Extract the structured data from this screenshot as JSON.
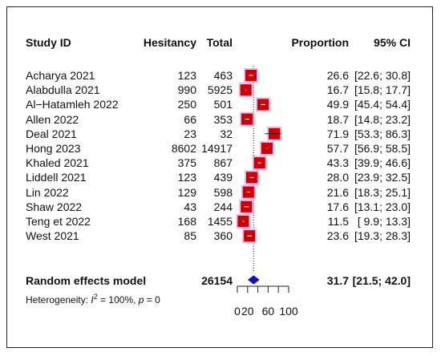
{
  "headers": {
    "study": "Study ID",
    "hesitancy": "Hesitancy",
    "total": "Total",
    "proportion": "Proportion",
    "ci": "95% CI"
  },
  "summary": {
    "label": "Random effects model",
    "total": "26154",
    "proportion": "31.7",
    "ci": "[21.5; 42.0]",
    "heterogeneity_prefix": "Heterogeneity: ",
    "heterogeneity_i": "I",
    "heterogeneity_sup": "2",
    "heterogeneity_rest": " = 100%, ",
    "heterogeneity_p": "p",
    "heterogeneity_pval": " = 0"
  },
  "colors": {
    "box": "#cc0000",
    "box_halo": "#e8a8e8",
    "diamond": "#1010cc",
    "line": "#222222"
  },
  "chart_data": {
    "type": "forest",
    "x_ticks": [
      "0",
      "20",
      "60",
      "100"
    ],
    "x_tick_values": [
      0,
      20,
      60,
      100
    ],
    "xlim": [
      0,
      100
    ],
    "reference_line": 31.7,
    "studies": [
      {
        "study": "Acharya 2021",
        "hesitancy": "123",
        "total": "463",
        "proportion": 26.6,
        "prop_label": "26.6",
        "lower": 22.6,
        "upper": 30.8,
        "ci_label": "[22.6; 30.8]"
      },
      {
        "study": "Alabdulla 2021",
        "hesitancy": "990",
        "total": "5925",
        "proportion": 16.7,
        "prop_label": "16.7",
        "lower": 15.8,
        "upper": 17.7,
        "ci_label": "[15.8; 17.7]"
      },
      {
        "study": "Al−Hatamleh 2022",
        "hesitancy": "250",
        "total": "501",
        "proportion": 49.9,
        "prop_label": "49.9",
        "lower": 45.4,
        "upper": 54.4,
        "ci_label": "[45.4; 54.4]"
      },
      {
        "study": "Allen 2022",
        "hesitancy": "66",
        "total": "353",
        "proportion": 18.7,
        "prop_label": "18.7",
        "lower": 14.8,
        "upper": 23.2,
        "ci_label": "[14.8; 23.2]"
      },
      {
        "study": "Deal 2021",
        "hesitancy": "23",
        "total": "32",
        "proportion": 71.9,
        "prop_label": "71.9",
        "lower": 53.3,
        "upper": 86.3,
        "ci_label": "[53.3; 86.3]"
      },
      {
        "study": "Hong 2023",
        "hesitancy": "8602",
        "total": "14917",
        "proportion": 57.7,
        "prop_label": "57.7",
        "lower": 56.9,
        "upper": 58.5,
        "ci_label": "[56.9; 58.5]"
      },
      {
        "study": "Khaled 2021",
        "hesitancy": "375",
        "total": "867",
        "proportion": 43.3,
        "prop_label": "43.3",
        "lower": 39.9,
        "upper": 46.6,
        "ci_label": "[39.9; 46.6]"
      },
      {
        "study": "Liddell 2021",
        "hesitancy": "123",
        "total": "439",
        "proportion": 28.0,
        "prop_label": "28.0",
        "lower": 23.9,
        "upper": 32.5,
        "ci_label": "[23.9; 32.5]"
      },
      {
        "study": "Lin 2022",
        "hesitancy": "129",
        "total": "598",
        "proportion": 21.6,
        "prop_label": "21.6",
        "lower": 18.3,
        "upper": 25.1,
        "ci_label": "[18.3; 25.1]"
      },
      {
        "study": "Shaw 2022",
        "hesitancy": "43",
        "total": "244",
        "proportion": 17.6,
        "prop_label": "17.6",
        "lower": 13.1,
        "upper": 23.0,
        "ci_label": "[13.1; 23.0]"
      },
      {
        "study": "Teng et 2022",
        "hesitancy": "168",
        "total": "1455",
        "proportion": 11.5,
        "prop_label": "11.5",
        "lower": 9.9,
        "upper": 13.3,
        "ci_label": "[ 9.9; 13.3]"
      },
      {
        "study": "West 2021",
        "hesitancy": "85",
        "total": "360",
        "proportion": 23.6,
        "prop_label": "23.6",
        "lower": 19.3,
        "upper": 28.3,
        "ci_label": "[19.3; 28.3]"
      }
    ],
    "pooled": {
      "proportion": 31.7,
      "lower": 21.5,
      "upper": 42.0
    }
  }
}
